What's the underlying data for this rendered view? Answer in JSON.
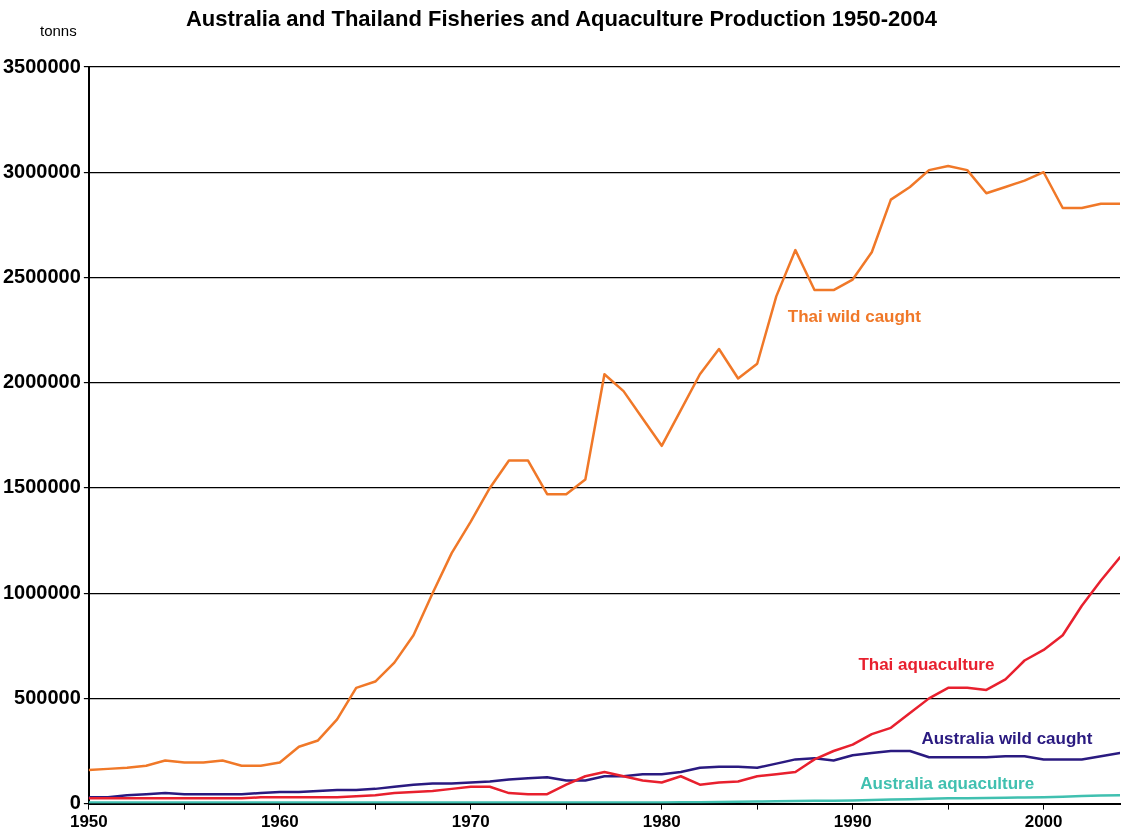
{
  "chart_data": {
    "type": "line",
    "title": "Australia and Thailand Fisheries and Aquaculture Production 1950-2004",
    "ylabel": "tonns",
    "x": [
      1950,
      1951,
      1952,
      1953,
      1954,
      1955,
      1956,
      1957,
      1958,
      1959,
      1960,
      1961,
      1962,
      1963,
      1964,
      1965,
      1966,
      1967,
      1968,
      1969,
      1970,
      1971,
      1972,
      1973,
      1974,
      1975,
      1976,
      1977,
      1978,
      1979,
      1980,
      1981,
      1982,
      1983,
      1984,
      1985,
      1986,
      1987,
      1988,
      1989,
      1990,
      1991,
      1992,
      1993,
      1994,
      1995,
      1996,
      1997,
      1998,
      1999,
      2000,
      2001,
      2002,
      2003,
      2004
    ],
    "series": [
      {
        "name": "Thai wild caught",
        "color": "#f07828",
        "values": [
          160000,
          165000,
          170000,
          180000,
          205000,
          195000,
          195000,
          205000,
          180000,
          180000,
          195000,
          270000,
          300000,
          400000,
          550000,
          580000,
          670000,
          800000,
          1000000,
          1190000,
          1340000,
          1500000,
          1630000,
          1630000,
          1470000,
          1470000,
          1540000,
          2040000,
          1960000,
          1830000,
          1700000,
          1870000,
          2040000,
          2160000,
          2020000,
          2090000,
          2410000,
          2630000,
          2440000,
          2440000,
          2490000,
          2620000,
          2870000,
          2930000,
          3010000,
          3030000,
          3010000,
          2900000,
          2930000,
          2960000,
          3000000,
          2830000,
          2830000,
          2850000,
          2850000
        ]
      },
      {
        "name": "Thai aquaculture",
        "color": "#e8202e",
        "values": [
          25000,
          25000,
          25000,
          25000,
          25000,
          25000,
          25000,
          25000,
          25000,
          30000,
          30000,
          30000,
          30000,
          30000,
          35000,
          40000,
          50000,
          55000,
          60000,
          70000,
          80000,
          80000,
          50000,
          45000,
          45000,
          90000,
          130000,
          150000,
          130000,
          110000,
          100000,
          130000,
          90000,
          100000,
          105000,
          130000,
          140000,
          150000,
          210000,
          250000,
          280000,
          330000,
          360000,
          430000,
          500000,
          550000,
          550000,
          540000,
          590000,
          680000,
          730000,
          800000,
          940000,
          1060000,
          1170000
        ]
      },
      {
        "name": "Australia wild caught",
        "color": "#2a1a80",
        "values": [
          30000,
          30000,
          40000,
          45000,
          50000,
          45000,
          45000,
          45000,
          45000,
          50000,
          55000,
          55000,
          60000,
          65000,
          65000,
          70000,
          80000,
          90000,
          95000,
          95000,
          100000,
          105000,
          115000,
          120000,
          125000,
          110000,
          110000,
          130000,
          130000,
          140000,
          140000,
          150000,
          170000,
          175000,
          175000,
          170000,
          190000,
          210000,
          215000,
          205000,
          230000,
          240000,
          250000,
          250000,
          220000,
          220000,
          220000,
          220000,
          225000,
          225000,
          210000,
          210000,
          210000,
          225000,
          240000
        ]
      },
      {
        "name": "Australia aquaculture",
        "color": "#40c0b0",
        "values": [
          5000,
          5000,
          5000,
          5000,
          5000,
          5000,
          5000,
          5000,
          5000,
          5000,
          5000,
          5000,
          5000,
          5000,
          5000,
          5000,
          5000,
          5000,
          5000,
          5000,
          5000,
          5000,
          5000,
          5000,
          5000,
          5000,
          5000,
          5000,
          5000,
          5000,
          5000,
          6000,
          7000,
          8000,
          9000,
          10000,
          11000,
          12000,
          13000,
          14000,
          15000,
          17000,
          19000,
          21000,
          23000,
          25000,
          26000,
          27000,
          28000,
          29000,
          30000,
          33000,
          36000,
          38000,
          40000
        ]
      }
    ],
    "xlim": [
      1950,
      2004
    ],
    "xticks": [
      1950,
      {
        "value": 1955,
        "label": null
      },
      1960,
      {
        "value": 1965,
        "label": null
      },
      1970,
      {
        "value": 1975,
        "label": null
      },
      1980,
      {
        "value": 1985,
        "label": null
      },
      1990,
      {
        "value": 1995,
        "label": null
      },
      2000
    ],
    "ylim": [
      0,
      3500000
    ],
    "yticks": [
      0,
      500000,
      1000000,
      1500000,
      2000000,
      2500000,
      3000000,
      3500000
    ],
    "grid": "y",
    "legend": false,
    "marker": "none",
    "line_style": "solid"
  }
}
